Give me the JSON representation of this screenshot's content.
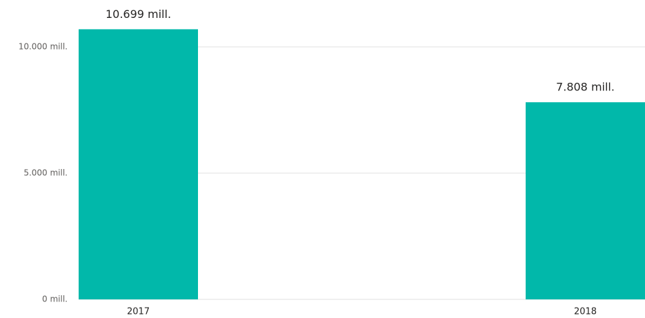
{
  "chart_data": {
    "type": "bar",
    "categories": [
      "2017",
      "2018"
    ],
    "values": [
      10699,
      7808
    ],
    "value_labels": [
      "10.699 mill.",
      "7.808 mill."
    ],
    "color": "#01b8aa",
    "ylim": [
      0,
      11000
    ],
    "yticks": [
      {
        "value": 0,
        "label": "0 mill."
      },
      {
        "value": 5000,
        "label": "5.000 mill."
      },
      {
        "value": 10000,
        "label": "10.000 mill."
      }
    ],
    "grid": true
  }
}
